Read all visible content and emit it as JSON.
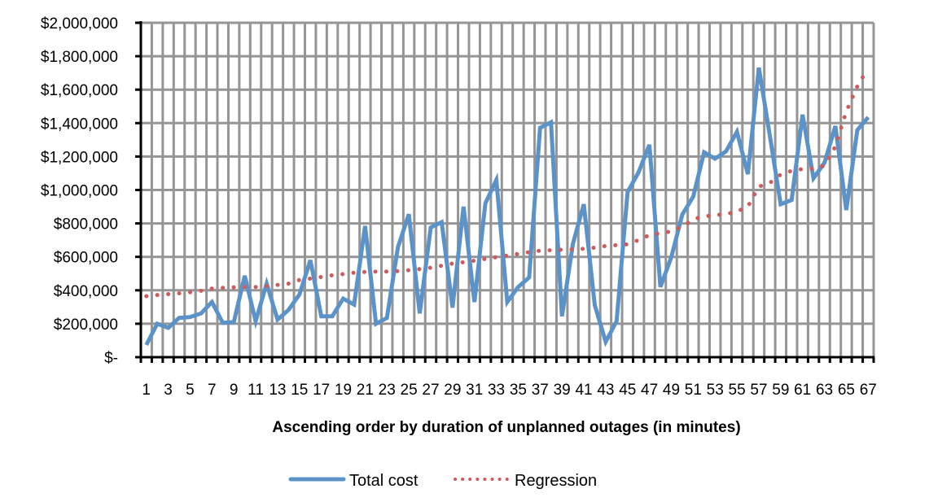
{
  "chart_data": {
    "type": "line",
    "title": "",
    "xlabel": "Ascending order by duration of unplanned outages (in minutes)",
    "ylabel": "",
    "ylim": [
      0,
      2000000
    ],
    "y_ticks": [
      0,
      200000,
      400000,
      600000,
      800000,
      1000000,
      1200000,
      1400000,
      1600000,
      1800000,
      2000000
    ],
    "y_tick_labels": [
      "$-",
      "$200,000",
      "$400,000",
      "$600,000",
      "$800,000",
      "$1,000,000",
      "$1,200,000",
      "$1,400,000",
      "$1,600,000",
      "$1,800,000",
      "$2,000,000"
    ],
    "x": [
      1,
      2,
      3,
      4,
      5,
      6,
      7,
      8,
      9,
      10,
      11,
      12,
      13,
      14,
      15,
      16,
      17,
      18,
      19,
      20,
      21,
      22,
      23,
      24,
      25,
      26,
      27,
      28,
      29,
      30,
      31,
      32,
      33,
      34,
      35,
      36,
      37,
      38,
      39,
      40,
      41,
      42,
      43,
      44,
      45,
      46,
      47,
      48,
      49,
      50,
      51,
      52,
      53,
      54,
      55,
      56,
      57,
      58,
      59,
      60,
      61,
      62,
      63,
      64,
      65,
      66,
      67
    ],
    "x_tick_labels_shown": [
      "1",
      "3",
      "5",
      "7",
      "9",
      "11",
      "13",
      "15",
      "17",
      "19",
      "21",
      "23",
      "25",
      "27",
      "29",
      "31",
      "33",
      "35",
      "37",
      "39",
      "41",
      "43",
      "45",
      "47",
      "49",
      "51",
      "53",
      "55",
      "57",
      "59",
      "61",
      "63",
      "65",
      "67"
    ],
    "grid": true,
    "legend_position": "bottom",
    "series": [
      {
        "name": "Total cost",
        "style": "solid",
        "color": "#5B93C9",
        "values": [
          73000,
          200000,
          175000,
          235000,
          240000,
          262000,
          330000,
          205000,
          210000,
          487000,
          215000,
          440000,
          225000,
          282000,
          375000,
          580000,
          245000,
          245000,
          350000,
          315000,
          785000,
          200000,
          235000,
          657000,
          855000,
          262000,
          775000,
          808000,
          297000,
          900000,
          330000,
          920000,
          1060000,
          330000,
          420000,
          477000,
          1372000,
          1405000,
          245000,
          677000,
          915000,
          311000,
          92000,
          215000,
          988000,
          1105000,
          1270000,
          420000,
          598000,
          852000,
          960000,
          1226000,
          1187000,
          1231000,
          1348000,
          1095000,
          1732000,
          1328000,
          915000,
          940000,
          1450000,
          1070000,
          1163000,
          1382000,
          880000,
          1358000,
          1435000
        ]
      },
      {
        "name": "Regression",
        "style": "dotted",
        "color": "#CD5C5C",
        "values": [
          365000,
          372000,
          377000,
          382000,
          388000,
          397000,
          410000,
          415000,
          418000,
          420000,
          420000,
          425000,
          432000,
          440000,
          462000,
          470000,
          480000,
          490000,
          497000,
          505000,
          510000,
          512000,
          512000,
          515000,
          520000,
          527000,
          535000,
          547000,
          560000,
          568000,
          577000,
          588000,
          598000,
          608000,
          618000,
          628000,
          637000,
          640000,
          643000,
          645000,
          648000,
          655000,
          665000,
          670000,
          675000,
          700000,
          730000,
          742000,
          752000,
          780000,
          825000,
          842000,
          850000,
          855000,
          872000,
          900000,
          1020000,
          1042000,
          1092000,
          1115000,
          1125000,
          1128000,
          1145000,
          1260000,
          1470000,
          1620000,
          1730000
        ]
      }
    ]
  },
  "legend": {
    "items": [
      {
        "label": "Total cost"
      },
      {
        "label": "Regression"
      }
    ]
  }
}
